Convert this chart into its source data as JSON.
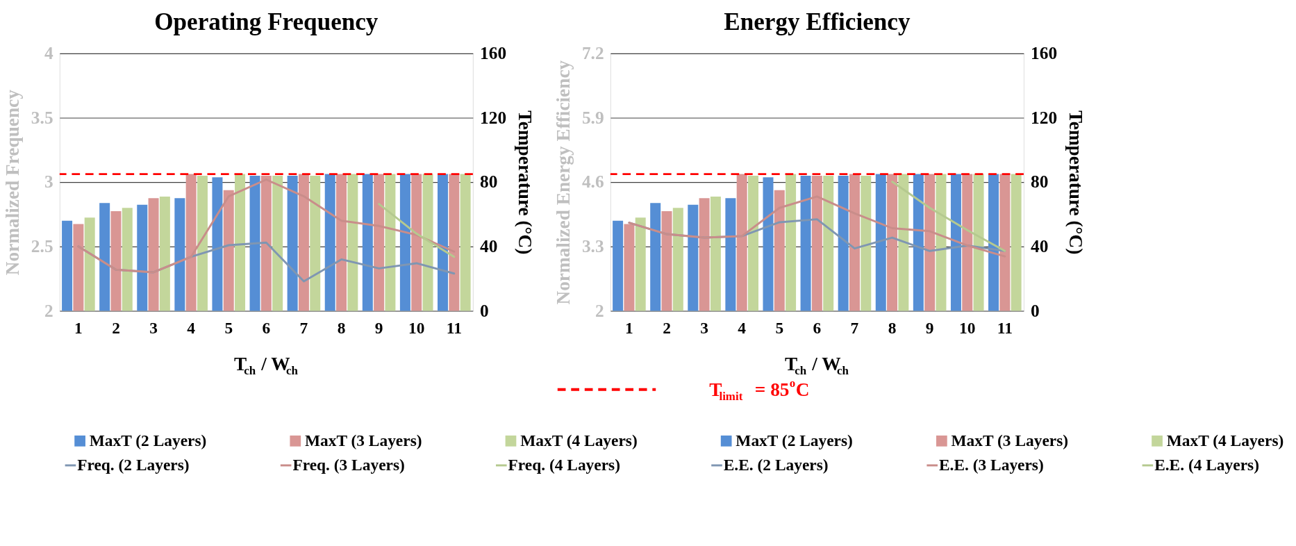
{
  "chart_data": [
    {
      "type": "bar",
      "title": "Operating Frequency",
      "xlabel": "T$_{ch}$ / W$_{ch}$",
      "ylabel": "Normalized Frequency",
      "y2label": "Temperature (°C)",
      "categories": [
        "1",
        "2",
        "3",
        "4",
        "5",
        "6",
        "7",
        "8",
        "9",
        "10",
        "11"
      ],
      "ylim": [
        2,
        4
      ],
      "yticks": [
        2,
        2.5,
        3,
        3.5,
        4
      ],
      "y2lim": [
        0,
        160
      ],
      "y2ticks": [
        0,
        40,
        80,
        120,
        160
      ],
      "grid": "y",
      "legend": "bottom",
      "ref_lines": [
        {
          "axis": "y2",
          "value": 85,
          "label": "T$_{limit}$ = 85$^{o}$C",
          "color": "#ff0000",
          "line_style": "dashed"
        }
      ],
      "series": [
        {
          "axis": "y2",
          "name": "MaxT (2 Layers)",
          "color": "#558ed5",
          "values": [
            56,
            67,
            66,
            70,
            83,
            84,
            84,
            85,
            85,
            85,
            85
          ]
        },
        {
          "axis": "y2",
          "name": "MaxT (3 Layers)",
          "color": "#d99694",
          "values": [
            54,
            62,
            70,
            85,
            75,
            84,
            85,
            85,
            85,
            85,
            85
          ]
        },
        {
          "axis": "y2",
          "name": "MaxT (4 Layers)",
          "color": "#c3d69b",
          "values": [
            58,
            64,
            71,
            84,
            85,
            84,
            84,
            85,
            85,
            85,
            85
          ]
        },
        {
          "type": "line",
          "name": "Freq. (2 Layers)",
          "color": "#7f96b2",
          "values": [
            2.5,
            2.32,
            2.3,
            2.42,
            2.51,
            2.53,
            2.23,
            2.4,
            2.33,
            2.37,
            2.29
          ]
        },
        {
          "type": "line",
          "name": "Freq. (3 Layers)",
          "color": "#c98d8a",
          "values": [
            2.5,
            2.32,
            2.3,
            2.42,
            2.89,
            3.02,
            2.89,
            2.7,
            2.66,
            2.59,
            2.46
          ]
        },
        {
          "type": "line",
          "name": "Freq. (4 Layers)",
          "color": "#b5c98f",
          "values": [
            null,
            null,
            null,
            null,
            null,
            null,
            null,
            null,
            2.83,
            2.6,
            2.42
          ]
        }
      ]
    },
    {
      "type": "bar",
      "title": "Energy Efficiency",
      "xlabel": "T$_{ch}$ / W$_{ch}$",
      "ylabel": "Normalized Energy Efficiency",
      "y2label": "Temperature (°C)",
      "categories": [
        "1",
        "2",
        "3",
        "4",
        "5",
        "6",
        "7",
        "8",
        "9",
        "10",
        "11"
      ],
      "ylim": [
        2,
        7.2
      ],
      "yticks": [
        2,
        3.3,
        4.6,
        5.9,
        7.2
      ],
      "y2lim": [
        0,
        160
      ],
      "y2ticks": [
        0,
        40,
        80,
        120,
        160
      ],
      "grid": "y",
      "legend": "bottom",
      "ref_lines": [
        {
          "axis": "y2",
          "value": 85,
          "color": "#ff0000",
          "line_style": "dashed"
        }
      ],
      "series": [
        {
          "axis": "y2",
          "name": "MaxT (2 Layers)",
          "color": "#558ed5",
          "values": [
            56,
            67,
            66,
            70,
            83,
            84,
            84,
            85,
            85,
            85,
            85
          ]
        },
        {
          "axis": "y2",
          "name": "MaxT (3 Layers)",
          "color": "#d99694",
          "values": [
            54,
            62,
            70,
            85,
            75,
            84,
            85,
            85,
            85,
            85,
            85
          ]
        },
        {
          "axis": "y2",
          "name": "MaxT (4 Layers)",
          "color": "#c3d69b",
          "values": [
            58,
            64,
            71,
            84,
            85,
            84,
            84,
            85,
            85,
            85,
            85
          ]
        },
        {
          "type": "line",
          "name": "E.E. (2 Layers)",
          "color": "#7f96b2",
          "values": [
            3.78,
            3.55,
            3.48,
            3.51,
            3.79,
            3.85,
            3.26,
            3.48,
            3.21,
            3.32,
            3.21
          ]
        },
        {
          "type": "line",
          "name": "E.E. (3 Layers)",
          "color": "#c98d8a",
          "values": [
            3.78,
            3.55,
            3.48,
            3.51,
            4.08,
            4.31,
            3.97,
            3.67,
            3.61,
            3.32,
            3.1
          ]
        },
        {
          "type": "line",
          "name": "E.E. (4 Layers)",
          "color": "#b5c98f",
          "values": [
            null,
            null,
            null,
            null,
            null,
            null,
            null,
            4.61,
            4.08,
            3.63,
            3.21
          ]
        }
      ]
    }
  ]
}
